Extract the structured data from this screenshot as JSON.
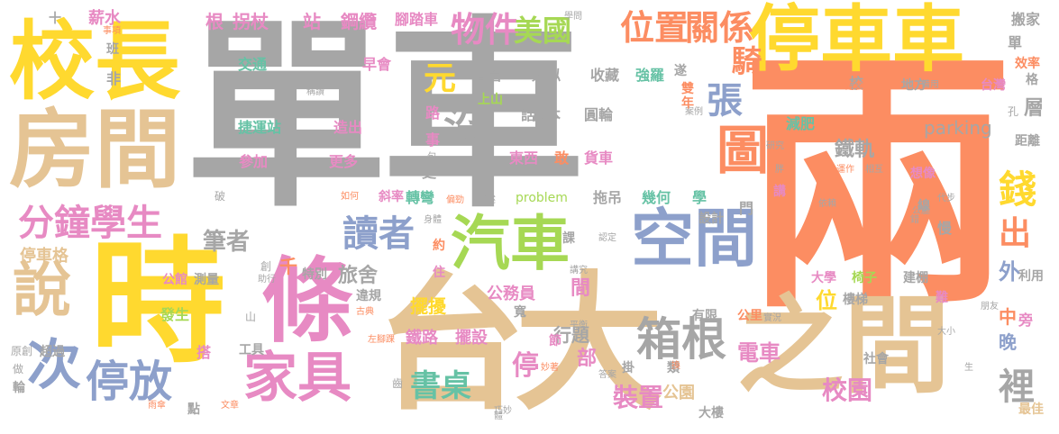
{
  "palette": {
    "gray": "#a6a6a6",
    "yellow": "#ffd92f",
    "orange": "#fc8d62",
    "tan": "#e5c494",
    "blue": "#8da0cb",
    "green": "#a6d854",
    "pink": "#e78ac3",
    "teal": "#66c2a5"
  },
  "words": {
    "shiche": "單車",
    "liang": "兩",
    "tingcheche": "停車車",
    "xiaozhang": "校長",
    "fangjian": "房間",
    "shi": "時",
    "taida": "台大",
    "zhijian": "之間",
    "tiao": "條",
    "kongjian": "空間",
    "qiche": "汽車",
    "jiaju": "家具",
    "fenzhong_xuesheng": "分鐘學生",
    "shuo": "說",
    "ci": "次",
    "tingfang": "停放",
    "xiangen": "箱根",
    "duzhe": "讀者",
    "zhuozi": "書桌",
    "tu": "圖",
    "weizhi": "位置",
    "guanxi": "關係",
    "wujian": "物件",
    "meiguo": "美國",
    "mei": "沒",
    "qian": "錢",
    "chu": "出",
    "li": "裡",
    "zhang": "張",
    "qi": "騎",
    "yuan": "元",
    "ting_v": "停",
    "zhuangzhi": "裝置",
    "xiaoyuan": "校園",
    "dianche": "電車",
    "tiegui": "鐵軌",
    "parking": "parking",
    "bizhe": "筆者",
    "lvshe": "旅舍",
    "bianjian": "邊間",
    "gongyuan": "公園",
    "jian_v": "間",
    "bu": "部",
    "xingti": "行題",
    "jie": "節",
    "bairao": "擺擾",
    "baishe": "擺設",
    "tielu": "鐵路",
    "gongwuyuan": "公務員",
    "dongxi": "東西",
    "gan": "敢",
    "huoche": "貨車",
    "ribens": "日本",
    "yuanlun": "圓輪",
    "hua": "話",
    "shangshan": "上山",
    "kanguan": "看管",
    "leisi": "類似",
    "shoucang": "收藏",
    "qiangluo": "強羅",
    "jiaotong": "交通",
    "zaohui": "早會",
    "jieyunzhan": "捷運站",
    "zaochu": "造出",
    "cangjia": "參加",
    "gengduo": "更多",
    "gen": "根",
    "guaizhang": "拐杖",
    "zhan": "站",
    "gangla": "鋼纜",
    "jiaotache": "腳踏車",
    "xinshui": "薪水",
    "fei": "非",
    "ban": "班",
    "tingchege": "停車格",
    "jianfei": "減肥",
    "jihe": "幾何",
    "xue": "學",
    "tuodiao": "拖吊",
    "liang_v": "輛",
    "sheji": "設計",
    "men": "門",
    "zhuanwan": "轉彎",
    "xielv": "斜率",
    "problem": "problem",
    "wei": "位",
    "daxue": "大學",
    "yizi": "椅子",
    "jianpeng": "建棚",
    "loutai": "樓梯",
    "shehui": "社會",
    "wan": "晚",
    "zhong": "中",
    "wai": "外",
    "ceng": "層",
    "dafang": "地方",
    "taiwan": "台灣",
    "banjia": "搬家",
    "dan": "單",
    "xiaolv": "效率",
    "xiao": "校",
    "qian_v": "千",
    "tebie": "特別",
    "gongguan": "公館",
    "celiang": "測量",
    "fasheng": "發生",
    "chaoguo": "超過",
    "da": "搭",
    "gongju": "工具",
    "weigui": "違規",
    "geng": "更",
    "yue": "約",
    "zhu": "住",
    "kuan": "寬",
    "youxian": "有限",
    "gongli": "公里",
    "louda": "大樓",
    "gua": "掛",
    "lei": "類",
    "zuijia": "最佳",
    "pang": "旁",
    "yuan_lan": "元",
    "shier": "十",
    "lun": "輪",
    "dian": "點",
    "jiaoguanxi": "關係",
    "yuanchuang": "原創",
    "zuo": "做",
    "hu_v": "嗎",
    "yusan": "雨傘",
    "wenzhang": "文章",
    "po": "破",
    "chuang": "創",
    "dayun": "犬",
    "sheng": "生",
    "pengyou": "朋友",
    "liyong": "利用",
    "juli": "距離",
    "ge": "格",
    "kong": "孔",
    "beiyong": "備用",
    "dingyi": "定義",
    "nan": "難",
    "man": "慢",
    "xiangxiang": "想像",
    "xian": "線",
    "cuo": "錯",
    "shilu": "實況",
    "daxiao": "大小",
    "yanjiu": "研究",
    "pang_v": "胖",
    "shixian": "實現",
    "daibu": "代步",
    "gongting": "公廳",
    "yilai": "依賴",
    "xiangfu": "相互",
    "yunzuo": "運作",
    "jiang": "講",
    "anli": "案例",
    "shuang": "雙",
    "nian": "年",
    "jian": "間",
    "sui": "遂",
    "lu": "路",
    "shi_v": "事",
    "ju": "句",
    "ruhe": "如何",
    "miaoshu": "描述",
    "shenti": "身體",
    "pianjiao": "偏勁",
    "jihe2": "幾何",
    "bi": "bi",
    "jiang2": "講究",
    "pingheng": "平衡",
    "daan": "答案",
    "huan": "換",
    "qiaomiao": "巧妙",
    "shixiang": "事項",
    "chengzan": "稱讚",
    "xuewen": "學問",
    "tiyi": "認定",
    "ke": "課",
    "shan": "山",
    "zhuxing": "助行",
    "guguan": "古典",
    "zuojiao": "左腳踝",
    "miaozhe": "妙著",
    "chi": "齒",
    "ti": "體",
    "gongjiang": "公差"
  }
}
